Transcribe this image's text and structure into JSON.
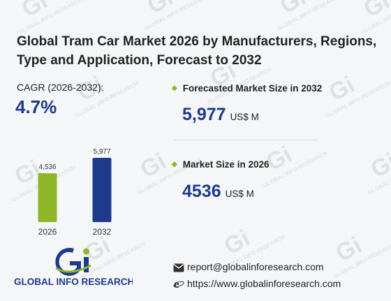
{
  "title": "Global Tram Car Market 2026 by Manufacturers, Regions, Type and Application, Forecast to 2032",
  "cagr": {
    "label": "CAGR",
    "period": "(2026-2032):",
    "value": "4.7%"
  },
  "forecast": {
    "label": "Forecasted Market Size in 2032",
    "value": "5,977",
    "unit": "US$ M"
  },
  "market": {
    "label": "Market Size in 2026",
    "value": "4536",
    "unit": "US$ M"
  },
  "brand": {
    "name": "GLOBAL INFO RESEARCH",
    "watermark": "GLOBAL INFO RESEARCH"
  },
  "contact": {
    "email": "report@globalinforesearch.com",
    "website": "https://www.globalinforesearch.com"
  },
  "icons": {
    "email": "envelope-icon",
    "web": "globe-e-icon"
  },
  "colors": {
    "bar_2026": "#8fb528",
    "bar_2032": "#1e3a8a",
    "accent_blue": "#1f3a8a",
    "accent_green": "#8fb528"
  },
  "chart_data": {
    "type": "bar",
    "categories": [
      "2026",
      "2032"
    ],
    "values": [
      4536,
      5977
    ],
    "value_labels": [
      "4,536",
      "5,977"
    ],
    "ylim": [
      0,
      5977
    ],
    "grid": false
  }
}
